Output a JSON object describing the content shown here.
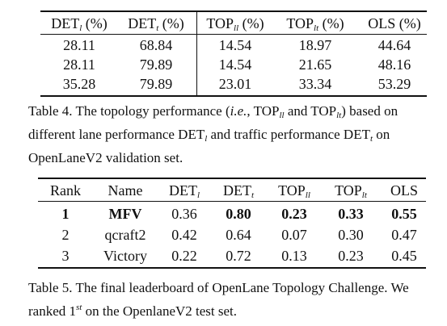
{
  "table4": {
    "header": [
      [
        {
          "text": "DET"
        },
        {
          "text": "l",
          "format": "sub"
        },
        {
          "text": " (%)"
        }
      ],
      [
        {
          "text": "DET"
        },
        {
          "text": "t",
          "format": "sub"
        },
        {
          "text": " (%)"
        }
      ],
      [
        {
          "text": "TOP"
        },
        {
          "text": "ll",
          "format": "sub"
        },
        {
          "text": " (%)"
        }
      ],
      [
        {
          "text": "TOP"
        },
        {
          "text": "lt",
          "format": "sub"
        },
        {
          "text": " (%)"
        }
      ],
      [
        {
          "text": "OLS (%)"
        }
      ]
    ],
    "rows": [
      {
        "cells": [
          "28.11",
          "68.84",
          "14.54",
          "18.97",
          "44.64"
        ]
      },
      {
        "cells": [
          "28.11",
          "79.89",
          "14.54",
          "21.65",
          "48.16"
        ]
      },
      {
        "cells": [
          "35.28",
          "79.89",
          "23.01",
          "33.34",
          "53.29"
        ]
      }
    ],
    "caption": [
      {
        "text": "Table 4. The topology performance ("
      },
      {
        "text": "i.e.",
        "format": "italic"
      },
      {
        "text": ", TOP"
      },
      {
        "text": "ll",
        "format": "sub"
      },
      {
        "text": " and TOP"
      },
      {
        "text": "lt",
        "format": "sub"
      },
      {
        "text": ") based on different lane performance DET"
      },
      {
        "text": "l",
        "format": "sub"
      },
      {
        "text": " and traffic performance DET"
      },
      {
        "text": "t",
        "format": "sub"
      },
      {
        "text": " on OpenLaneV2 validation set."
      }
    ]
  },
  "table5": {
    "header": [
      [
        {
          "text": "Rank"
        }
      ],
      [
        {
          "text": "Name"
        }
      ],
      [
        {
          "text": "DET"
        },
        {
          "text": "l",
          "format": "sub"
        }
      ],
      [
        {
          "text": "DET"
        },
        {
          "text": "t",
          "format": "sub"
        }
      ],
      [
        {
          "text": "TOP"
        },
        {
          "text": "ll",
          "format": "sub"
        }
      ],
      [
        {
          "text": "TOP"
        },
        {
          "text": "lt",
          "format": "sub"
        }
      ],
      [
        {
          "text": "OLS"
        }
      ]
    ],
    "rows": [
      {
        "cells": [
          "1",
          "MFV",
          "0.36",
          "0.80",
          "0.23",
          "0.33",
          "0.55"
        ],
        "bold": [
          0,
          1,
          3,
          4,
          5,
          6
        ]
      },
      {
        "cells": [
          "2",
          "qcraft2",
          "0.42",
          "0.64",
          "0.07",
          "0.30",
          "0.47"
        ]
      },
      {
        "cells": [
          "3",
          "Victory",
          "0.22",
          "0.72",
          "0.13",
          "0.23",
          "0.45"
        ]
      }
    ],
    "caption": [
      {
        "text": "Table 5. The final leaderboard of OpenLane Topology Challenge. We ranked 1"
      },
      {
        "text": "st",
        "format": "sup"
      },
      {
        "text": " on the OpenlaneV2 test set."
      }
    ]
  }
}
